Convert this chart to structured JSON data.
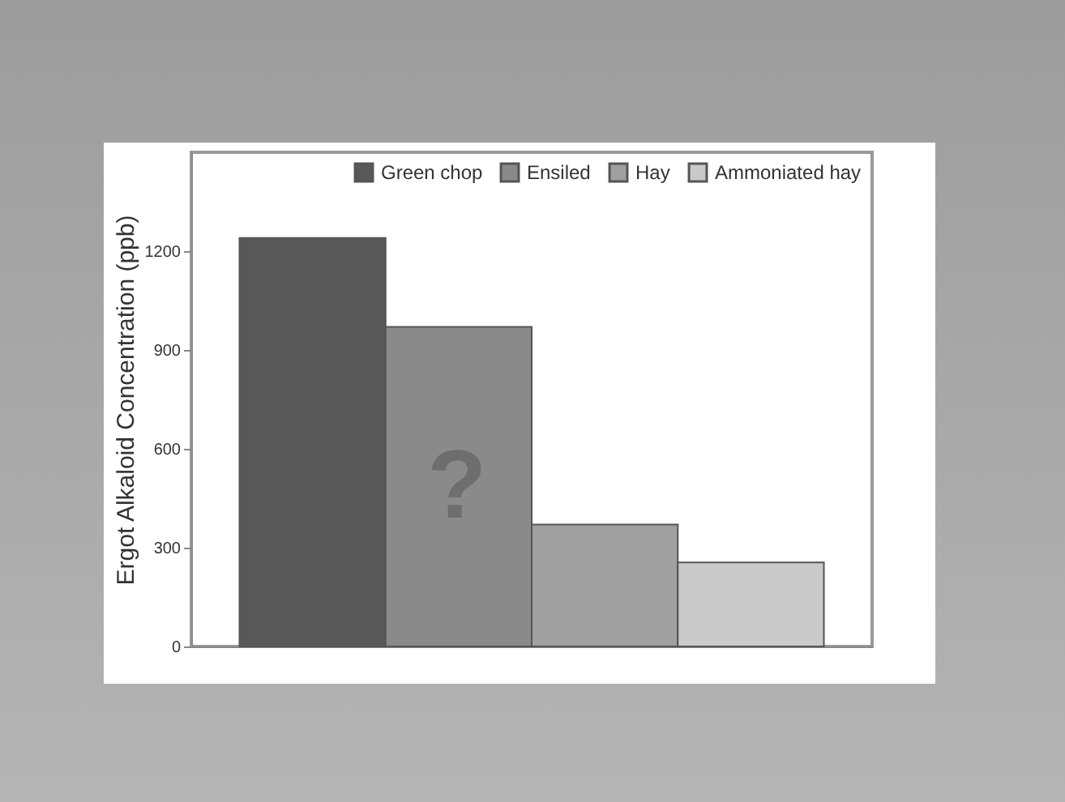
{
  "chart_data": {
    "type": "bar",
    "ylabel": "Ergot Alkaloid Concentration (ppb)",
    "categories": [
      null
    ],
    "series": [
      {
        "name": "Green chop",
        "color": "#585858",
        "values": [
          1240
        ]
      },
      {
        "name": "Ensiled",
        "color": "#8a8a8a",
        "values": [
          970
        ]
      },
      {
        "name": "Hay",
        "color": "#a0a0a0",
        "values": [
          370
        ]
      },
      {
        "name": "Ammoniated hay",
        "color": "#cacaca",
        "values": [
          255
        ]
      }
    ],
    "ylim": [
      0,
      1500
    ],
    "yticks": [
      0,
      300,
      600,
      900,
      1200
    ],
    "tick_labels": "y",
    "legend": "top right",
    "grid": false,
    "annotations": [
      "?"
    ]
  }
}
